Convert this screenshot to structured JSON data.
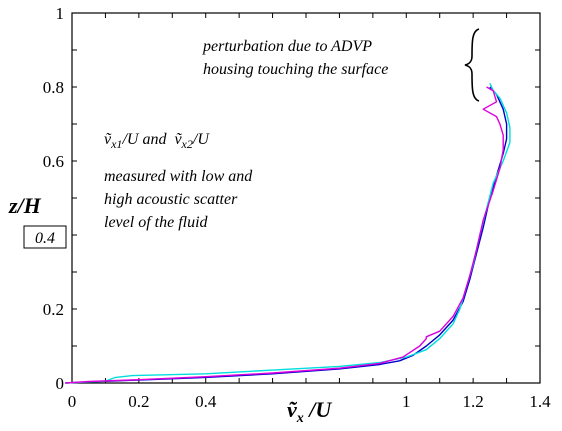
{
  "chart_data": {
    "type": "line",
    "title": "",
    "xlabel": {
      "base": "ṽ",
      "sub": "x",
      "suffix": " /U"
    },
    "ylabel": "z/H",
    "xlim": [
      0,
      1.4
    ],
    "ylim": [
      0,
      1
    ],
    "xticks": [
      "0",
      "0.2",
      "0.4",
      "1",
      "1.2",
      "1.4"
    ],
    "xtick_values": [
      0,
      0.2,
      0.4,
      1.0,
      1.2,
      1.4
    ],
    "yticks": [
      "0",
      "0.2",
      "0.6",
      "0.8",
      "1"
    ],
    "ytick_values": [
      0,
      0.2,
      0.6,
      0.8,
      1.0
    ],
    "boxed_label": {
      "text": "0.4",
      "value": 0.4
    },
    "annotations": {
      "top_line1": "perturbation due to ADVP",
      "top_line2": "housing touching the surface",
      "formula_a_base": "ṽ",
      "formula_a_sub": "x1",
      "formula_a_tail": "/U  and",
      "formula_b_base": "ṽ",
      "formula_b_sub": "x2",
      "formula_b_tail": "/U",
      "line3": "measured with low and",
      "line4": "high acoustic scatter",
      "line5": "level of the fluid"
    },
    "grid": false,
    "series": [
      {
        "color": "#0000cc",
        "points": [
          [
            -0.02,
            0.0
          ],
          [
            0.05,
            0.003
          ],
          [
            0.2,
            0.008
          ],
          [
            0.4,
            0.015
          ],
          [
            0.6,
            0.025
          ],
          [
            0.8,
            0.038
          ],
          [
            0.92,
            0.05
          ],
          [
            0.98,
            0.06
          ],
          [
            1.02,
            0.075
          ],
          [
            1.06,
            0.1
          ],
          [
            1.1,
            0.13
          ],
          [
            1.14,
            0.17
          ],
          [
            1.17,
            0.22
          ],
          [
            1.19,
            0.28
          ],
          [
            1.21,
            0.35
          ],
          [
            1.23,
            0.42
          ],
          [
            1.25,
            0.5
          ],
          [
            1.27,
            0.56
          ],
          [
            1.29,
            0.62
          ],
          [
            1.3,
            0.66
          ],
          [
            1.3,
            0.7
          ],
          [
            1.29,
            0.74
          ],
          [
            1.27,
            0.78
          ],
          [
            1.25,
            0.8
          ]
        ]
      },
      {
        "color": "#00dddd",
        "points": [
          [
            -0.02,
            0.0
          ],
          [
            0.1,
            0.005
          ],
          [
            0.13,
            0.015
          ],
          [
            0.18,
            0.02
          ],
          [
            0.4,
            0.025
          ],
          [
            0.6,
            0.035
          ],
          [
            0.8,
            0.045
          ],
          [
            0.92,
            0.055
          ],
          [
            1.0,
            0.07
          ],
          [
            1.06,
            0.09
          ],
          [
            1.1,
            0.12
          ],
          [
            1.14,
            0.16
          ],
          [
            1.16,
            0.2
          ],
          [
            1.18,
            0.26
          ],
          [
            1.2,
            0.32
          ],
          [
            1.22,
            0.4
          ],
          [
            1.24,
            0.47
          ],
          [
            1.26,
            0.54
          ],
          [
            1.29,
            0.6
          ],
          [
            1.31,
            0.65
          ],
          [
            1.31,
            0.69
          ],
          [
            1.3,
            0.73
          ],
          [
            1.28,
            0.77
          ],
          [
            1.26,
            0.79
          ],
          [
            1.25,
            0.81
          ]
        ]
      },
      {
        "color": "#dd00dd",
        "points": [
          [
            -0.02,
            0.0
          ],
          [
            0.05,
            0.004
          ],
          [
            0.2,
            0.009
          ],
          [
            0.4,
            0.017
          ],
          [
            0.6,
            0.027
          ],
          [
            0.8,
            0.04
          ],
          [
            0.92,
            0.053
          ],
          [
            0.99,
            0.07
          ],
          [
            1.04,
            0.1
          ],
          [
            1.06,
            0.12
          ],
          [
            1.06,
            0.125
          ],
          [
            1.1,
            0.14
          ],
          [
            1.14,
            0.18
          ],
          [
            1.17,
            0.23
          ],
          [
            1.19,
            0.29
          ],
          [
            1.21,
            0.36
          ],
          [
            1.23,
            0.44
          ],
          [
            1.26,
            0.52
          ],
          [
            1.28,
            0.58
          ],
          [
            1.29,
            0.63
          ],
          [
            1.29,
            0.67
          ],
          [
            1.28,
            0.7
          ],
          [
            1.27,
            0.72
          ],
          [
            1.23,
            0.74
          ],
          [
            1.27,
            0.76
          ],
          [
            1.26,
            0.79
          ],
          [
            1.24,
            0.8
          ]
        ]
      }
    ]
  }
}
